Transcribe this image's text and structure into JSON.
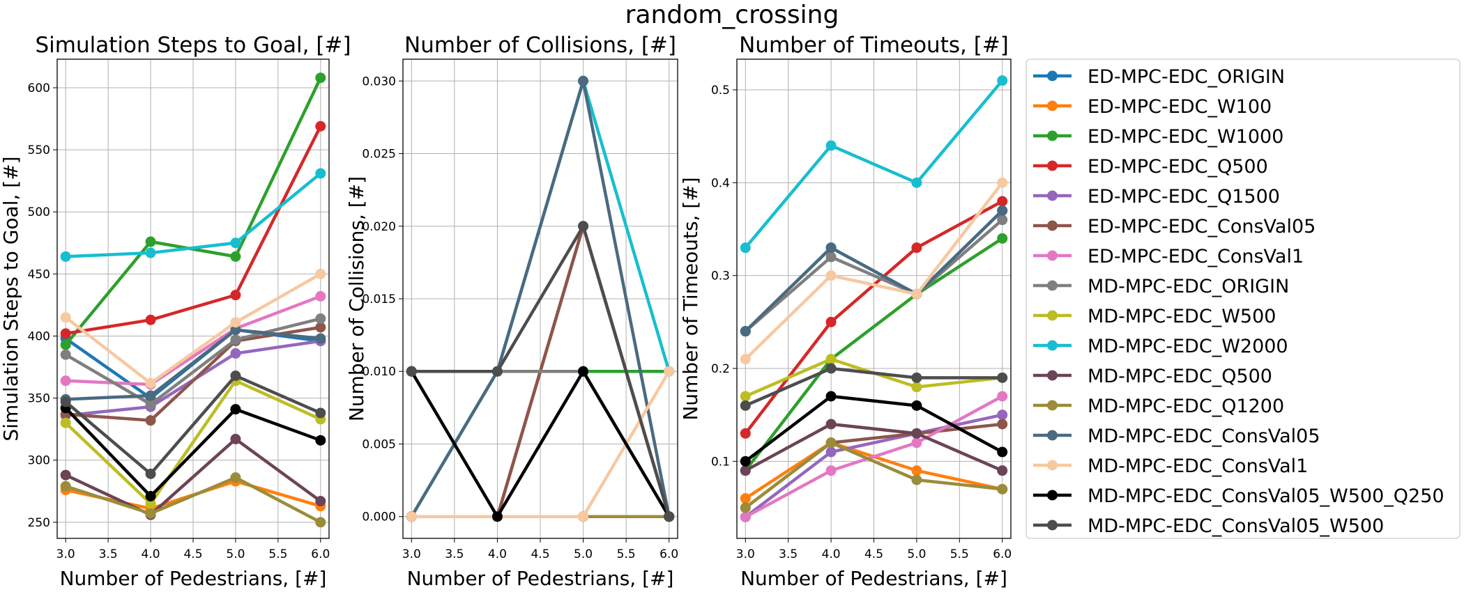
{
  "figure": {
    "suptitle": "random_crossing"
  },
  "chart_data": [
    {
      "type": "line",
      "title": "Simulation Steps to Goal, [#]",
      "xlabel": "Number of Pedestrians, [#]",
      "ylabel": "Simulation Steps to Goal, [#]",
      "x": [
        3,
        4,
        5,
        6
      ],
      "xlim": [
        2.9,
        6.1
      ],
      "ylim": [
        237,
        623
      ],
      "xticks": [
        "3.0",
        "3.5",
        "4.0",
        "4.5",
        "5.0",
        "5.5",
        "6.0"
      ],
      "yticks": [
        "250",
        "300",
        "350",
        "400",
        "450",
        "500",
        "550",
        "600"
      ],
      "grid": true,
      "series": [
        {
          "name": "ED-MPC-EDC_ORIGIN",
          "values": [
            398,
            350,
            405,
            396
          ]
        },
        {
          "name": "ED-MPC-EDC_W100",
          "values": [
            276,
            261,
            283,
            263
          ]
        },
        {
          "name": "ED-MPC-EDC_W1000",
          "values": [
            393,
            476,
            464,
            608
          ]
        },
        {
          "name": "ED-MPC-EDC_Q500",
          "values": [
            402,
            413,
            433,
            569
          ]
        },
        {
          "name": "ED-MPC-EDC_Q1500",
          "values": [
            336,
            343,
            386,
            396
          ]
        },
        {
          "name": "ED-MPC-EDC_ConsVal05",
          "values": [
            337,
            332,
            396,
            407
          ]
        },
        {
          "name": "ED-MPC-EDC_ConsVal1",
          "values": [
            364,
            361,
            406,
            432
          ]
        },
        {
          "name": "MD-MPC-EDC_ORIGIN",
          "values": [
            385,
            345,
            397,
            414
          ]
        },
        {
          "name": "MD-MPC-EDC_W500",
          "values": [
            330,
            265,
            364,
            333
          ]
        },
        {
          "name": "MD-MPC-EDC_W2000",
          "values": [
            464,
            467,
            475,
            531
          ]
        },
        {
          "name": "MD-MPC-EDC_Q500",
          "values": [
            288,
            256,
            317,
            267
          ]
        },
        {
          "name": "MD-MPC-EDC_Q1200",
          "values": [
            279,
            257,
            286,
            250
          ]
        },
        {
          "name": "MD-MPC-EDC_ConsVal05",
          "values": [
            349,
            352,
            405,
            398
          ]
        },
        {
          "name": "MD-MPC-EDC_ConsVal1",
          "values": [
            415,
            362,
            411,
            450
          ]
        },
        {
          "name": "MD-MPC-EDC_ConsVal05_W500_Q250",
          "values": [
            342,
            271,
            341,
            316
          ]
        },
        {
          "name": "MD-MPC-EDC_ConsVal05_W500",
          "values": [
            347,
            289,
            368,
            338
          ]
        }
      ]
    },
    {
      "type": "line",
      "title": "Number of Collisions, [#]",
      "xlabel": "Number of Pedestrians, [#]",
      "ylabel": "Number of Collisions, [#]",
      "x": [
        3,
        4,
        5,
        6
      ],
      "xlim": [
        2.9,
        6.1
      ],
      "ylim": [
        -0.0015,
        0.0315
      ],
      "xticks": [
        "3.0",
        "3.5",
        "4.0",
        "4.5",
        "5.0",
        "5.5",
        "6.0"
      ],
      "yticks": [
        "0.000",
        "0.005",
        "0.010",
        "0.015",
        "0.020",
        "0.025",
        "0.030"
      ],
      "grid": true,
      "series": [
        {
          "name": "ED-MPC-EDC_ORIGIN",
          "values": [
            0.01,
            0.01,
            0.01,
            0.01
          ]
        },
        {
          "name": "ED-MPC-EDC_W100",
          "values": [
            0,
            0,
            0,
            0
          ]
        },
        {
          "name": "ED-MPC-EDC_W1000",
          "values": [
            0.01,
            0.01,
            0.01,
            0.01
          ]
        },
        {
          "name": "ED-MPC-EDC_Q500",
          "values": [
            0,
            0,
            0.02,
            0
          ]
        },
        {
          "name": "ED-MPC-EDC_Q1500",
          "values": [
            0,
            0,
            0,
            0
          ]
        },
        {
          "name": "ED-MPC-EDC_ConsVal05",
          "values": [
            0,
            0,
            0.02,
            0
          ]
        },
        {
          "name": "ED-MPC-EDC_ConsVal1",
          "values": [
            0,
            0,
            0,
            0
          ]
        },
        {
          "name": "MD-MPC-EDC_ORIGIN",
          "values": [
            0.01,
            0.01,
            0.01,
            0
          ]
        },
        {
          "name": "MD-MPC-EDC_W500",
          "values": [
            0,
            0,
            0,
            0
          ]
        },
        {
          "name": "MD-MPC-EDC_W2000",
          "values": [
            0,
            0.01,
            0.03,
            0.01
          ]
        },
        {
          "name": "MD-MPC-EDC_Q500",
          "values": [
            0,
            0,
            0,
            0
          ]
        },
        {
          "name": "MD-MPC-EDC_Q1200",
          "values": [
            0,
            0,
            0,
            0
          ]
        },
        {
          "name": "MD-MPC-EDC_ConsVal05",
          "values": [
            0,
            0.01,
            0.03,
            0
          ]
        },
        {
          "name": "MD-MPC-EDC_ConsVal1",
          "values": [
            0,
            0,
            0,
            0.01
          ]
        },
        {
          "name": "MD-MPC-EDC_ConsVal05_W500_Q250",
          "values": [
            0.01,
            0,
            0.01,
            0
          ]
        },
        {
          "name": "MD-MPC-EDC_ConsVal05_W500",
          "values": [
            0.01,
            0.01,
            0.02,
            0
          ]
        }
      ]
    },
    {
      "type": "line",
      "title": "Number of Timeouts, [#]",
      "xlabel": "Number of Pedestrians, [#]",
      "ylabel": "Number of Timeouts, [#]",
      "x": [
        3,
        4,
        5,
        6
      ],
      "xlim": [
        2.9,
        6.1
      ],
      "ylim": [
        0.017,
        0.533
      ],
      "xticks": [
        "3.0",
        "3.5",
        "4.0",
        "4.5",
        "5.0",
        "5.5",
        "6.0"
      ],
      "yticks": [
        "0.1",
        "0.2",
        "0.3",
        "0.4",
        "0.5"
      ],
      "grid": true,
      "series": [
        {
          "name": "ED-MPC-EDC_ORIGIN",
          "values": [
            0.24,
            0.33,
            0.28,
            0.37
          ]
        },
        {
          "name": "ED-MPC-EDC_W100",
          "values": [
            0.06,
            0.12,
            0.09,
            0.07
          ]
        },
        {
          "name": "ED-MPC-EDC_W1000",
          "values": [
            0.09,
            0.21,
            0.28,
            0.34
          ]
        },
        {
          "name": "ED-MPC-EDC_Q500",
          "values": [
            0.13,
            0.25,
            0.33,
            0.38
          ]
        },
        {
          "name": "ED-MPC-EDC_Q1500",
          "values": [
            0.04,
            0.11,
            0.13,
            0.15
          ]
        },
        {
          "name": "ED-MPC-EDC_ConsVal05",
          "values": [
            0.05,
            0.12,
            0.13,
            0.14
          ]
        },
        {
          "name": "ED-MPC-EDC_ConsVal1",
          "values": [
            0.04,
            0.09,
            0.12,
            0.17
          ]
        },
        {
          "name": "MD-MPC-EDC_ORIGIN",
          "values": [
            0.24,
            0.32,
            0.28,
            0.36
          ]
        },
        {
          "name": "MD-MPC-EDC_W500",
          "values": [
            0.17,
            0.21,
            0.18,
            0.19
          ]
        },
        {
          "name": "MD-MPC-EDC_W2000",
          "values": [
            0.33,
            0.44,
            0.4,
            0.51
          ]
        },
        {
          "name": "MD-MPC-EDC_Q500",
          "values": [
            0.09,
            0.14,
            0.13,
            0.09
          ]
        },
        {
          "name": "MD-MPC-EDC_Q1200",
          "values": [
            0.05,
            0.12,
            0.08,
            0.07
          ]
        },
        {
          "name": "MD-MPC-EDC_ConsVal05",
          "values": [
            0.24,
            0.33,
            0.28,
            0.37
          ]
        },
        {
          "name": "MD-MPC-EDC_ConsVal1",
          "values": [
            0.21,
            0.3,
            0.28,
            0.4
          ]
        },
        {
          "name": "MD-MPC-EDC_ConsVal05_W500_Q250",
          "values": [
            0.1,
            0.17,
            0.16,
            0.11
          ]
        },
        {
          "name": "MD-MPC-EDC_ConsVal05_W500",
          "values": [
            0.16,
            0.2,
            0.19,
            0.19
          ]
        }
      ]
    }
  ],
  "legend": {
    "placement": "right",
    "items": [
      {
        "name": "ED-MPC-EDC_ORIGIN",
        "color": "#1f77b4"
      },
      {
        "name": "ED-MPC-EDC_W100",
        "color": "#ff7f0e"
      },
      {
        "name": "ED-MPC-EDC_W1000",
        "color": "#2ca02c"
      },
      {
        "name": "ED-MPC-EDC_Q500",
        "color": "#d62728"
      },
      {
        "name": "ED-MPC-EDC_Q1500",
        "color": "#9467bd"
      },
      {
        "name": "ED-MPC-EDC_ConsVal05",
        "color": "#8c564b"
      },
      {
        "name": "ED-MPC-EDC_ConsVal1",
        "color": "#e377c2"
      },
      {
        "name": "MD-MPC-EDC_ORIGIN",
        "color": "#7f7f7f"
      },
      {
        "name": "MD-MPC-EDC_W500",
        "color": "#bcbd22"
      },
      {
        "name": "MD-MPC-EDC_W2000",
        "color": "#17becf"
      },
      {
        "name": "MD-MPC-EDC_Q500",
        "color": "#6b4455"
      },
      {
        "name": "MD-MPC-EDC_Q1200",
        "color": "#9a8c3a"
      },
      {
        "name": "MD-MPC-EDC_ConsVal05",
        "color": "#4a6a80"
      },
      {
        "name": "MD-MPC-EDC_ConsVal1",
        "color": "#f8c8a0"
      },
      {
        "name": "MD-MPC-EDC_ConsVal05_W500_Q250",
        "color": "#000000"
      },
      {
        "name": "MD-MPC-EDC_ConsVal05_W500",
        "color": "#4d4d4d"
      }
    ]
  }
}
